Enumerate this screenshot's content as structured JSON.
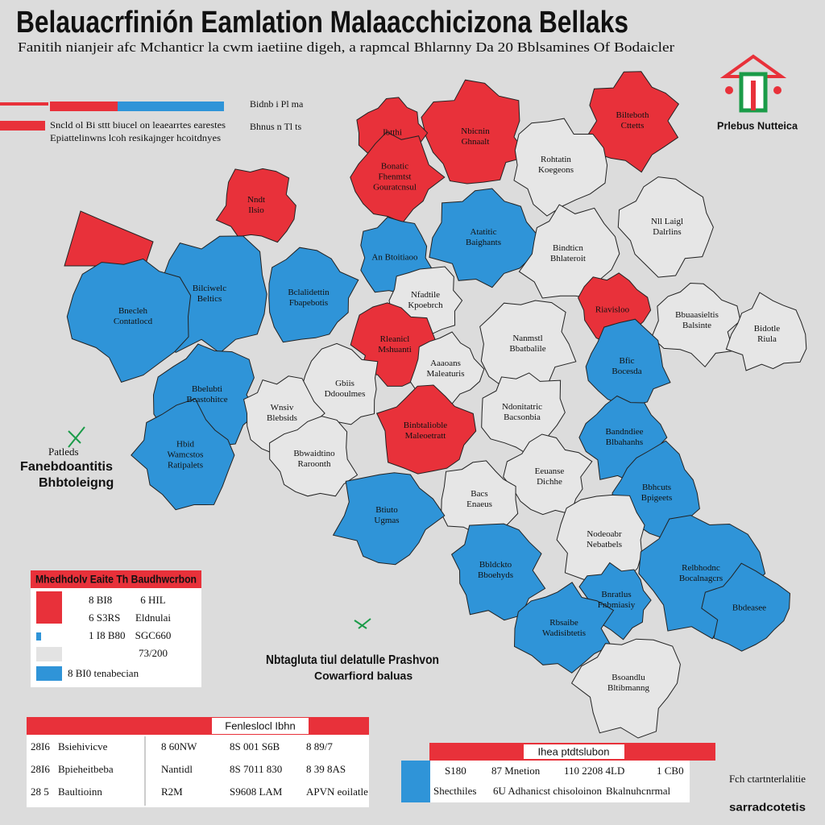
{
  "header": {
    "title": "Belauacrfinión Eamlation Malaacchicizona Bellaks",
    "subtitle": "Fanitih nianjeir afc Mchanticr la cwm iaetiine digeh, a rapmcal Bhlarnny Da 20 Bblsamines Of Bodaicler"
  },
  "top_legend": {
    "lines": [
      "Sncld ol Bi sttt biucel on leaearrtes earestes",
      "Epiattelinwns lcoh resikajnger hcoitdnyes"
    ],
    "side": [
      "Bidnb i Pl ma",
      "Bhnus n Tl ts"
    ]
  },
  "logo": {
    "text": "Prlebus Nutteica"
  },
  "left_note": [
    "Patleds",
    "Fanebdoantitis",
    "Bhbtoleigng"
  ],
  "center_note": [
    "Nbtagluta tiul delatulle Prashvon",
    "Cowarfiord baluas"
  ],
  "regions": [
    {
      "label": [
        "Nbicnin",
        "Ghnaalt"
      ],
      "color": "#e8313a"
    },
    {
      "label": [
        "Ibtthi"
      ],
      "color": "#e8313a"
    },
    {
      "label": [
        "Bonatic",
        "Fhenmtst",
        "Gouratcnsul"
      ],
      "color": "#e8313a"
    },
    {
      "label": [
        "Nndt",
        "Ilsio"
      ],
      "color": "#e8313a"
    },
    {
      "label": [
        "Bilteboth",
        "Cttetts"
      ],
      "color": "#e8313a"
    },
    {
      "label": [
        "Rohtatin",
        "Koegeons"
      ],
      "color": "#e6e6e6"
    },
    {
      "label": [
        "Atatitic",
        "Baighants"
      ],
      "color": "#2f94d8"
    },
    {
      "label": [
        "An Btoitiaoo"
      ],
      "color": "#2f94d8"
    },
    {
      "label": [
        "Bilciwelc",
        "Beltics"
      ],
      "color": "#2f94d8"
    },
    {
      "label": [
        "Bclalidettin",
        "Fbapebotis"
      ],
      "color": "#2f94d8"
    },
    {
      "label": [
        "Bnecleh",
        "Contatlocd"
      ],
      "color": "#2f94d8"
    },
    {
      "label": [
        "Nfadtile",
        "Kpoebrch"
      ],
      "color": "#e6e6e6"
    },
    {
      "label": [
        "Bindticn",
        "Bhlateroit"
      ],
      "color": "#e6e6e6"
    },
    {
      "label": [
        "Nll Laigl",
        "Dalrlins"
      ],
      "color": "#e6e6e6"
    },
    {
      "label": [
        "Rleanicl",
        "Mshuanti"
      ],
      "color": "#e8313a"
    },
    {
      "label": [
        "Nanmstl",
        "Bbatbalile"
      ],
      "color": "#e6e6e6"
    },
    {
      "label": [
        "Riavisloo"
      ],
      "color": "#e8313a"
    },
    {
      "label": [
        "Bbuaasieltis",
        "Balsinte"
      ],
      "color": "#e6e6e6"
    },
    {
      "label": [
        "Bidotle",
        "Riula"
      ],
      "color": "#e6e6e6"
    },
    {
      "label": [
        "Aaaoans",
        "Maleaturis"
      ],
      "color": "#e6e6e6"
    },
    {
      "label": [
        "Gbiis",
        "Ddooulmes"
      ],
      "color": "#e6e6e6"
    },
    {
      "label": [
        "Bbelubti",
        "Bcastohitce"
      ],
      "color": "#2f94d8"
    },
    {
      "label": [
        "Bfic",
        "Bocesda"
      ],
      "color": "#2f94d8"
    },
    {
      "label": [
        "Wnsiv",
        "Blebsids"
      ],
      "color": "#e6e6e6"
    },
    {
      "label": [
        "Binbtalioble",
        "Maleoetratt"
      ],
      "color": "#e8313a"
    },
    {
      "label": [
        "Ndonitatric",
        "Bacsonbia"
      ],
      "color": "#e6e6e6"
    },
    {
      "label": [
        "Hbid",
        "Wamcstos",
        "Ratipalets"
      ],
      "color": "#2f94d8"
    },
    {
      "label": [
        "Bbwaidtino",
        "Raroonth"
      ],
      "color": "#e6e6e6"
    },
    {
      "label": [
        "Bandndiee",
        "Blbahanhs"
      ],
      "color": "#2f94d8"
    },
    {
      "label": [
        "Eeuanse",
        "Dichhe"
      ],
      "color": "#e6e6e6"
    },
    {
      "label": [
        "Bacs",
        "Enaeus"
      ],
      "color": "#e6e6e6"
    },
    {
      "label": [
        "Bbhcuts",
        "Bpigeets"
      ],
      "color": "#2f94d8"
    },
    {
      "label": [
        "Btiuto",
        "Ugmas"
      ],
      "color": "#2f94d8"
    },
    {
      "label": [
        "Nodeoabr",
        "Nebatbels"
      ],
      "color": "#e6e6e6"
    },
    {
      "label": [
        "Bbldckto",
        "Bboehyds"
      ],
      "color": "#2f94d8"
    },
    {
      "label": [
        "Relbhodnc",
        "Bocalnagcrs"
      ],
      "color": "#2f94d8"
    },
    {
      "label": [
        "Bnratlus",
        "Fnbmiasiy"
      ],
      "color": "#2f94d8"
    },
    {
      "label": [
        "Rbsaibe",
        "Wadisibtetis"
      ],
      "color": "#2f94d8"
    },
    {
      "label": [
        "Bbdeasee"
      ],
      "color": "#2f94d8"
    },
    {
      "label": [
        "Bsoandlu",
        "Bltibmanng"
      ],
      "color": "#e6e6e6"
    }
  ],
  "legend_box": {
    "title": "Mhedhdolv Eaite Th Baudhwcrbon",
    "rows": [
      [
        "8 BI8",
        "6 HIL"
      ],
      [
        "6 S3RS",
        "Eldnulai"
      ],
      [
        "1 I8 B80",
        "SGC660"
      ],
      [
        "",
        "73/200"
      ]
    ],
    "last": "8 BI0 tenabecian"
  },
  "table": {
    "title": "Fenleslocl Ibhn",
    "rows": [
      [
        "28I6",
        "Bsiehivicve",
        "8 60NW",
        "8S 001 S6B",
        "8 89/7"
      ],
      [
        "28I6",
        "Bpieheitbeba",
        "Nantidl",
        "8S 7011 830",
        "8 39 8AS"
      ],
      [
        "28 5",
        "Baultioinn",
        "R2M",
        "S9608 LAM",
        "APVN eoilatle"
      ]
    ]
  },
  "table2": {
    "title": "Ihea ptdtslubon",
    "row1": [
      "S180",
      "87 Mnetion",
      "110 2208 4LD",
      "1 CB0"
    ],
    "row2": [
      "Shecthiles",
      "6U Adhanicst chisoloinon",
      "Bkalnuhcnrmal"
    ]
  },
  "corner_note": [
    "Fch ctartnterlalitie",
    "sarradcotetis"
  ]
}
